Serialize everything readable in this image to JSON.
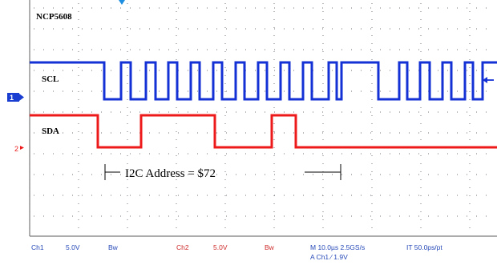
{
  "screen": {
    "device_label": "NCP5608",
    "traces": [
      {
        "name": "SCL",
        "channel_marker": "1",
        "color": "#1431d6"
      },
      {
        "name": "SDA",
        "channel_marker": "2",
        "color": "#ec1a1a"
      }
    ],
    "annotation": "I2C Address = $72",
    "colors": {
      "background": "#ffffff",
      "grid": "#6f7378",
      "border": "#7a7a7a",
      "status_blue": "#2548b8",
      "status_red": "#cf2a2a",
      "marker_blue": "#1a3dd1"
    },
    "icons": {
      "trigger_position": "trigger-position-icon",
      "trigger_level": "trigger-level-arrow-icon",
      "channel_marker": "channel-marker-icon"
    }
  },
  "status_bar": {
    "ch1_label": "Ch1",
    "ch1_volts": "5.0V",
    "ch1_bw": "Bw",
    "ch2_label": "Ch2",
    "ch2_volts": "5.0V",
    "ch2_bw": "Bw",
    "timebase": "M 10.0µs 2.5GS/s",
    "resolution": "IT 50.0ps/pt",
    "trigger": "A  Ch1  ⁄  1.9V"
  }
}
